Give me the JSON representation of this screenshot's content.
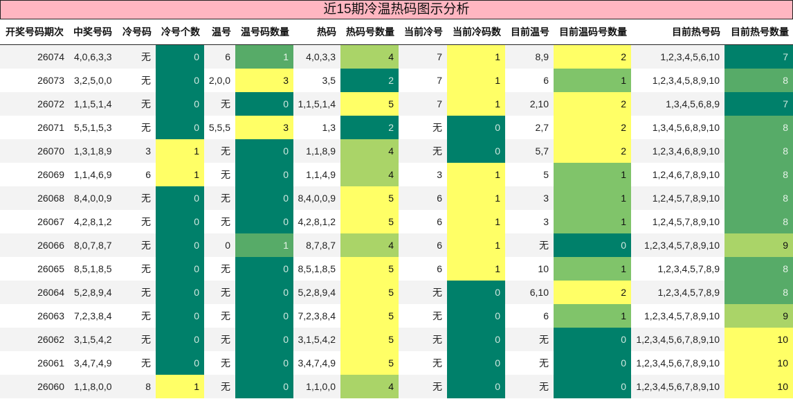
{
  "title": "近15期冷温热码图示分析",
  "colors": {
    "dark_green": "#00806a",
    "medium_green": "#57ab68",
    "light_green": "#80c46a",
    "lime": "#aad468",
    "yellow": "#ffff66",
    "title_bg": "#ffb6c1"
  },
  "headers": [
    "开奖号码期次",
    "中奖号码",
    "冷号码",
    "冷号个数",
    "温号",
    "温号码数量",
    "热码",
    "热码号数量",
    "当前冷号",
    "当前冷码数",
    "目前温号",
    "目前温码号数量",
    "目前热号码",
    "目前热号数量"
  ],
  "rows": [
    {
      "period": "26074",
      "numbers": "4,0,6,3,3",
      "cold": "无",
      "cold_count": "0",
      "warm": "6",
      "warm_count": "1",
      "hot": "4,0,3,3",
      "hot_count": "4",
      "cur_cold": "7",
      "cur_cold_count": "1",
      "cur_warm": "8,9",
      "cur_warm_count": "2",
      "cur_hot": "1,2,3,4,5,6,10",
      "cur_hot_count": "7"
    },
    {
      "period": "26073",
      "numbers": "3,2,5,0,0",
      "cold": "无",
      "cold_count": "0",
      "warm": "2,0,0",
      "warm_count": "3",
      "hot": "3,5",
      "hot_count": "2",
      "cur_cold": "7",
      "cur_cold_count": "1",
      "cur_warm": "6",
      "cur_warm_count": "1",
      "cur_hot": "1,2,3,4,5,8,9,10",
      "cur_hot_count": "8"
    },
    {
      "period": "26072",
      "numbers": "1,1,5,1,4",
      "cold": "无",
      "cold_count": "0",
      "warm": "无",
      "warm_count": "0",
      "hot": "1,1,5,1,4",
      "hot_count": "5",
      "cur_cold": "7",
      "cur_cold_count": "1",
      "cur_warm": "2,10",
      "cur_warm_count": "2",
      "cur_hot": "1,3,4,5,6,8,9",
      "cur_hot_count": "7"
    },
    {
      "period": "26071",
      "numbers": "5,5,1,5,3",
      "cold": "无",
      "cold_count": "0",
      "warm": "5,5,5",
      "warm_count": "3",
      "hot": "1,3",
      "hot_count": "2",
      "cur_cold": "无",
      "cur_cold_count": "0",
      "cur_warm": "2,7",
      "cur_warm_count": "2",
      "cur_hot": "1,3,4,5,6,8,9,10",
      "cur_hot_count": "8"
    },
    {
      "period": "26070",
      "numbers": "1,3,1,8,9",
      "cold": "3",
      "cold_count": "1",
      "warm": "无",
      "warm_count": "0",
      "hot": "1,1,8,9",
      "hot_count": "4",
      "cur_cold": "无",
      "cur_cold_count": "0",
      "cur_warm": "5,7",
      "cur_warm_count": "2",
      "cur_hot": "1,2,3,4,6,8,9,10",
      "cur_hot_count": "8"
    },
    {
      "period": "26069",
      "numbers": "1,1,4,6,9",
      "cold": "6",
      "cold_count": "1",
      "warm": "无",
      "warm_count": "0",
      "hot": "1,1,4,9",
      "hot_count": "4",
      "cur_cold": "3",
      "cur_cold_count": "1",
      "cur_warm": "5",
      "cur_warm_count": "1",
      "cur_hot": "1,2,4,6,7,8,9,10",
      "cur_hot_count": "8"
    },
    {
      "period": "26068",
      "numbers": "8,4,0,0,9",
      "cold": "无",
      "cold_count": "0",
      "warm": "无",
      "warm_count": "0",
      "hot": "8,4,0,0,9",
      "hot_count": "5",
      "cur_cold": "6",
      "cur_cold_count": "1",
      "cur_warm": "3",
      "cur_warm_count": "1",
      "cur_hot": "1,2,4,5,7,8,9,10",
      "cur_hot_count": "8"
    },
    {
      "period": "26067",
      "numbers": "4,2,8,1,2",
      "cold": "无",
      "cold_count": "0",
      "warm": "无",
      "warm_count": "0",
      "hot": "4,2,8,1,2",
      "hot_count": "5",
      "cur_cold": "6",
      "cur_cold_count": "1",
      "cur_warm": "3",
      "cur_warm_count": "1",
      "cur_hot": "1,2,4,5,7,8,9,10",
      "cur_hot_count": "8"
    },
    {
      "period": "26066",
      "numbers": "8,0,7,8,7",
      "cold": "无",
      "cold_count": "0",
      "warm": "0",
      "warm_count": "1",
      "hot": "8,7,8,7",
      "hot_count": "4",
      "cur_cold": "6",
      "cur_cold_count": "1",
      "cur_warm": "无",
      "cur_warm_count": "0",
      "cur_hot": "1,2,3,4,5,7,8,9,10",
      "cur_hot_count": "9"
    },
    {
      "period": "26065",
      "numbers": "8,5,1,8,5",
      "cold": "无",
      "cold_count": "0",
      "warm": "无",
      "warm_count": "0",
      "hot": "8,5,1,8,5",
      "hot_count": "5",
      "cur_cold": "6",
      "cur_cold_count": "1",
      "cur_warm": "10",
      "cur_warm_count": "1",
      "cur_hot": "1,2,3,4,5,7,8,9",
      "cur_hot_count": "8"
    },
    {
      "period": "26064",
      "numbers": "5,2,8,9,4",
      "cold": "无",
      "cold_count": "0",
      "warm": "无",
      "warm_count": "0",
      "hot": "5,2,8,9,4",
      "hot_count": "5",
      "cur_cold": "无",
      "cur_cold_count": "0",
      "cur_warm": "6,10",
      "cur_warm_count": "2",
      "cur_hot": "1,2,3,4,5,7,8,9",
      "cur_hot_count": "8"
    },
    {
      "period": "26063",
      "numbers": "7,2,3,8,4",
      "cold": "无",
      "cold_count": "0",
      "warm": "无",
      "warm_count": "0",
      "hot": "7,2,3,8,4",
      "hot_count": "5",
      "cur_cold": "无",
      "cur_cold_count": "0",
      "cur_warm": "6",
      "cur_warm_count": "1",
      "cur_hot": "1,2,3,4,5,7,8,9,10",
      "cur_hot_count": "9"
    },
    {
      "period": "26062",
      "numbers": "3,1,5,4,2",
      "cold": "无",
      "cold_count": "0",
      "warm": "无",
      "warm_count": "0",
      "hot": "3,1,5,4,2",
      "hot_count": "5",
      "cur_cold": "无",
      "cur_cold_count": "0",
      "cur_warm": "无",
      "cur_warm_count": "0",
      "cur_hot": "1,2,3,4,5,6,7,8,9,10",
      "cur_hot_count": "10"
    },
    {
      "period": "26061",
      "numbers": "3,4,7,4,9",
      "cold": "无",
      "cold_count": "0",
      "warm": "无",
      "warm_count": "0",
      "hot": "3,4,7,4,9",
      "hot_count": "5",
      "cur_cold": "无",
      "cur_cold_count": "0",
      "cur_warm": "无",
      "cur_warm_count": "0",
      "cur_hot": "1,2,3,4,5,6,7,8,9,10",
      "cur_hot_count": "10"
    },
    {
      "period": "26060",
      "numbers": "1,1,8,0,0",
      "cold": "8",
      "cold_count": "1",
      "warm": "无",
      "warm_count": "0",
      "hot": "1,1,0,0",
      "hot_count": "4",
      "cur_cold": "无",
      "cur_cold_count": "0",
      "cur_warm": "无",
      "cur_warm_count": "0",
      "cur_hot": "1,2,3,4,5,6,7,8,9,10",
      "cur_hot_count": "10"
    }
  ]
}
